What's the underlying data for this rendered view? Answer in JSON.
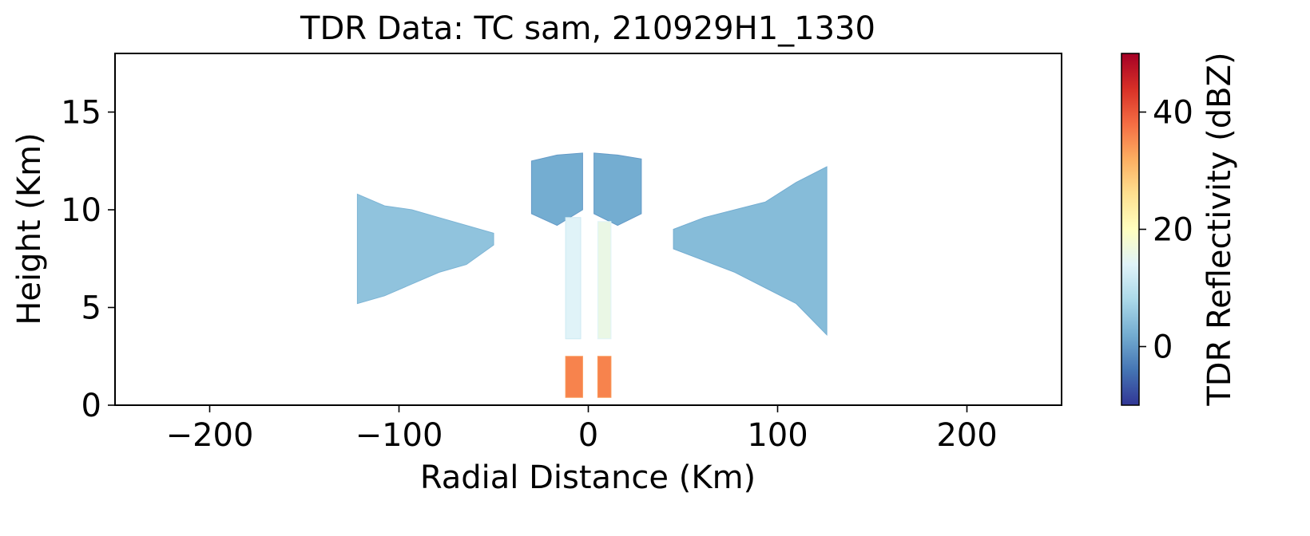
{
  "chart_data": {
    "type": "heatmap",
    "title": "TDR Data: TC sam, 210929H1_1330",
    "xlabel": "Radial Distance (Km)",
    "ylabel": "Height (Km)",
    "xlim": [
      -250,
      250
    ],
    "ylim": [
      0,
      18
    ],
    "x_ticks": [
      -200,
      -100,
      0,
      100,
      200
    ],
    "x_tick_labels": [
      "−200",
      "−100",
      "0",
      "100",
      "200"
    ],
    "y_ticks": [
      0,
      5,
      10,
      15
    ],
    "y_tick_labels": [
      "0",
      "5",
      "10",
      "15"
    ],
    "colorbar": {
      "label": "TDR Reflectivity (dBZ)",
      "colormap": "RdYlBu_r",
      "range": [
        -10,
        50
      ],
      "ticks": [
        0,
        20,
        40
      ],
      "tick_labels": [
        "0",
        "20",
        "40"
      ]
    },
    "grid": false,
    "regions": [
      {
        "desc": "outer anvil west",
        "x": [
          -122,
          -50
        ],
        "y_bottom": [
          5.2,
          5.6,
          6.2,
          6.8,
          7.2,
          8.2
        ],
        "y_top": [
          10.8,
          10.2,
          10.0,
          9.6,
          9.2,
          8.8
        ],
        "dbz": 5
      },
      {
        "desc": "eyewall cloud west",
        "x": [
          -30,
          -3
        ],
        "y_bottom": [
          9.8,
          9.2,
          10.0
        ],
        "y_top": [
          12.5,
          12.8,
          12.9
        ],
        "dbz": 2
      },
      {
        "desc": "eyewall cloud east",
        "x": [
          3,
          28
        ],
        "y_bottom": [
          9.8,
          9.2,
          9.8
        ],
        "y_top": [
          12.9,
          12.8,
          12.6
        ],
        "dbz": 2
      },
      {
        "desc": "outer anvil east",
        "x": [
          45,
          126
        ],
        "y_bottom": [
          8.0,
          7.4,
          6.8,
          6.0,
          5.2,
          3.6
        ],
        "y_top": [
          9.0,
          9.6,
          10.0,
          10.4,
          11.4,
          12.2
        ],
        "dbz": 4
      },
      {
        "desc": "west eyewall column",
        "x": [
          -12,
          -4
        ],
        "y_bottom": [
          3.4
        ],
        "y_top": [
          9.6
        ],
        "dbz": 14
      },
      {
        "desc": "east eyewall column",
        "x": [
          5,
          12
        ],
        "y_bottom": [
          3.4
        ],
        "y_top": [
          9.4
        ],
        "dbz": 16
      },
      {
        "desc": "west eyewall rain",
        "x": [
          -12,
          -3
        ],
        "y_bottom": [
          0.4
        ],
        "y_top": [
          2.5
        ],
        "dbz": 36
      },
      {
        "desc": "east eyewall rain",
        "x": [
          5,
          12
        ],
        "y_bottom": [
          0.4
        ],
        "y_top": [
          2.5
        ],
        "dbz": 36
      }
    ]
  }
}
